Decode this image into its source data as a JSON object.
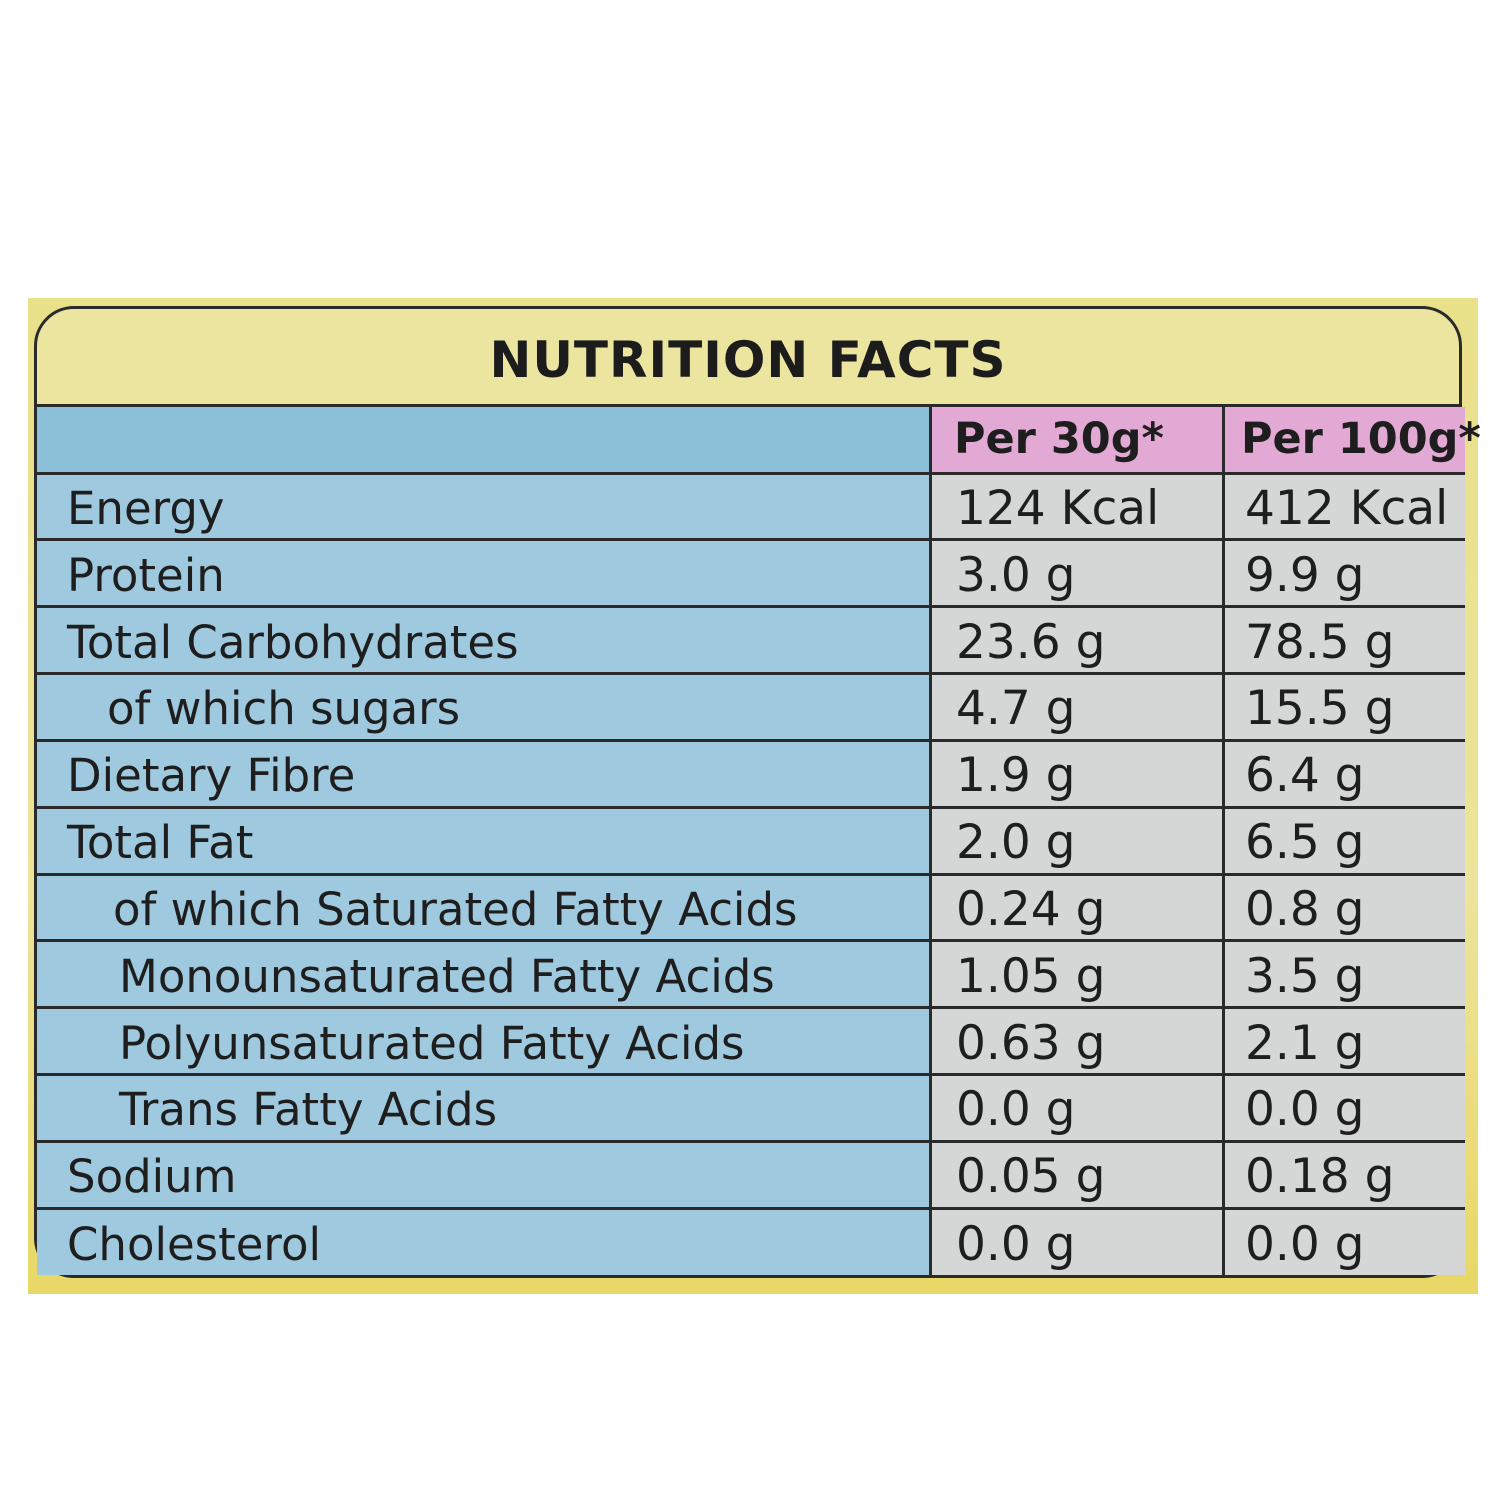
{
  "title": "NUTRITION FACTS",
  "columns": {
    "per_30g": "Per 30g*",
    "per_100g": "Per 100g*"
  },
  "rows": [
    {
      "name": "Energy",
      "per_30g": "124 Kcal",
      "per_100g": "412 Kcal"
    },
    {
      "name": "Protein",
      "per_30g": "3.0 g",
      "per_100g": "9.9 g"
    },
    {
      "name": "Total Carbohydrates",
      "per_30g": "23.6 g",
      "per_100g": "78.5 g"
    },
    {
      "name": "of which sugars",
      "per_30g": "4.7 g",
      "per_100g": "15.5 g"
    },
    {
      "name": "Dietary Fibre",
      "per_30g": "1.9 g",
      "per_100g": "6.4 g"
    },
    {
      "name": "Total Fat",
      "per_30g": "2.0 g",
      "per_100g": "6.5 g"
    },
    {
      "name": "of which Saturated Fatty Acids",
      "per_30g": "0.24 g",
      "per_100g": "0.8 g"
    },
    {
      "name": "Monounsaturated Fatty Acids",
      "per_30g": "1.05 g",
      "per_100g": "3.5 g"
    },
    {
      "name": "Polyunsaturated Fatty Acids",
      "per_30g": "0.63 g",
      "per_100g": "2.1 g"
    },
    {
      "name": "Trans Fatty Acids",
      "per_30g": "0.0 g",
      "per_100g": "0.0 g"
    },
    {
      "name": "Sodium",
      "per_30g": "0.05 g",
      "per_100g": "0.18 g"
    },
    {
      "name": "Cholesterol",
      "per_30g": "0.0 g",
      "per_100g": "0.0 g"
    }
  ],
  "colors": {
    "frame_yellow": "#ece5a0",
    "name_column_blue": "#9fc9de",
    "value_column_grey": "#d5d7d6",
    "header_pink": "#e2a9d4",
    "border": "#2a2a2a"
  }
}
